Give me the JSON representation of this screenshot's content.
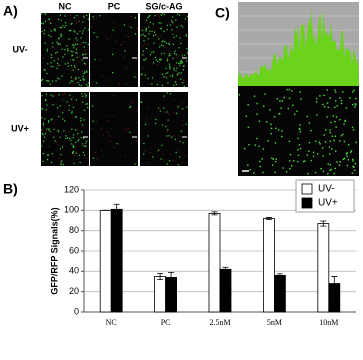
{
  "panel_labels": [
    "A)",
    "B)",
    "C)"
  ],
  "image_columns": [
    "NC",
    "PC",
    "SG/c-AG"
  ],
  "image_rows": [
    "UV-",
    "UV+"
  ],
  "chart_data": {
    "type": "bar",
    "ylabel": "GFP/RFP Signals(%)",
    "categories": [
      "NC",
      "PC",
      "2.5nM",
      "5nM",
      "10nM"
    ],
    "series": [
      {
        "name": "UV-",
        "color": "#ffffff",
        "values": [
          100,
          35,
          97,
          92,
          87
        ],
        "errors": [
          0,
          3,
          1.5,
          1,
          2.5
        ]
      },
      {
        "name": "UV+",
        "color": "#000000",
        "values": [
          101,
          34,
          42,
          36,
          28
        ],
        "errors": [
          5,
          5,
          2,
          1.5,
          7
        ]
      }
    ],
    "ylim": [
      0,
      120
    ],
    "yticks": [
      0,
      20,
      40,
      60,
      80,
      100,
      120
    ],
    "grid": true,
    "legend": "upper right"
  }
}
